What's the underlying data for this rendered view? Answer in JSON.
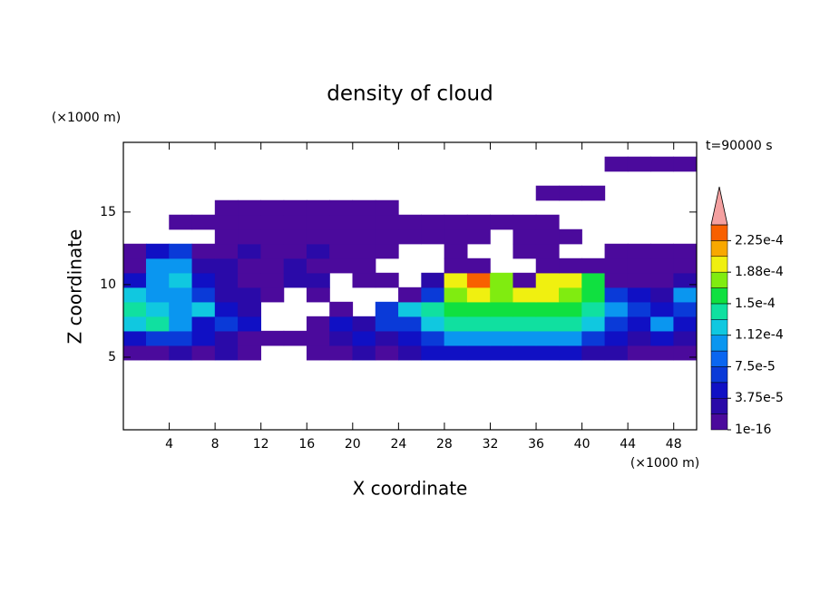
{
  "chart_data": {
    "type": "contour",
    "title": "density of cloud",
    "xlabel": "X coordinate",
    "ylabel": "Z coordinate",
    "x_unit": "(×1000 m)",
    "y_unit": "(×1000 m)",
    "annotation": "t=90000 s",
    "xlim": [
      0,
      50
    ],
    "ylim": [
      0,
      19.8
    ],
    "xticks": [
      4,
      8,
      12,
      16,
      20,
      24,
      28,
      32,
      36,
      40,
      44,
      48
    ],
    "yticks": [
      5,
      10,
      15
    ],
    "x_edges": [
      0,
      2,
      4,
      6,
      8,
      10,
      12,
      14,
      16,
      18,
      20,
      22,
      24,
      26,
      28,
      30,
      32,
      34,
      36,
      38,
      40,
      42,
      44,
      46,
      48,
      50
    ],
    "y_edges": [
      4.8,
      5.8,
      6.8,
      7.8,
      8.8,
      9.8,
      10.8,
      11.8,
      12.8,
      13.8,
      14.8,
      15.8,
      16.8,
      17.8,
      18.8
    ],
    "values": [
      [
        1e-05,
        1e-05,
        3e-05,
        1e-05,
        3e-05,
        1e-05,
        null,
        null,
        1e-05,
        1e-05,
        3e-05,
        1e-05,
        3e-05,
        5e-05,
        5e-05,
        5e-05,
        5e-05,
        5e-05,
        5e-05,
        5e-05,
        3e-05,
        3e-05,
        1e-05,
        1e-05,
        1e-05
      ],
      [
        5e-05,
        7e-05,
        7e-05,
        5e-05,
        3e-05,
        1e-05,
        1e-05,
        1e-05,
        1e-05,
        3e-05,
        5e-05,
        3e-05,
        5e-05,
        7e-05,
        0.0001,
        0.0001,
        0.0001,
        0.0001,
        0.0001,
        0.0001,
        7e-05,
        5e-05,
        3e-05,
        5e-05,
        3e-05
      ],
      [
        0.00012,
        0.00014,
        0.0001,
        5e-05,
        7e-05,
        5e-05,
        null,
        null,
        1e-05,
        5e-05,
        3e-05,
        7e-05,
        7e-05,
        0.00012,
        0.00014,
        0.00014,
        0.00014,
        0.00014,
        0.00014,
        0.00014,
        0.00012,
        7e-05,
        5e-05,
        0.0001,
        5e-05
      ],
      [
        0.00014,
        0.00012,
        0.0001,
        0.00012,
        5e-05,
        3e-05,
        null,
        null,
        null,
        1e-05,
        null,
        7e-05,
        0.00012,
        0.00014,
        0.00016,
        0.00016,
        0.00016,
        0.00016,
        0.00016,
        0.00016,
        0.00014,
        0.0001,
        7e-05,
        5e-05,
        7e-05
      ],
      [
        0.00012,
        0.0001,
        0.0001,
        7e-05,
        3e-05,
        3e-05,
        1e-05,
        null,
        1e-05,
        null,
        null,
        null,
        1e-05,
        7e-05,
        0.00018,
        0.0002,
        0.00018,
        0.0002,
        0.0002,
        0.00018,
        0.00016,
        7e-05,
        5e-05,
        3e-05,
        0.0001
      ],
      [
        5e-05,
        0.0001,
        0.00012,
        5e-05,
        3e-05,
        1e-05,
        1e-05,
        3e-05,
        3e-05,
        null,
        1e-05,
        1e-05,
        null,
        3e-05,
        0.0002,
        0.00023,
        0.00018,
        1e-05,
        0.0002,
        0.0002,
        0.00016,
        1e-05,
        1e-05,
        1e-05,
        3e-05
      ],
      [
        1e-05,
        0.0001,
        0.0001,
        3e-05,
        3e-05,
        1e-05,
        1e-05,
        3e-05,
        1e-05,
        1e-05,
        1e-05,
        null,
        null,
        null,
        1e-05,
        1e-05,
        null,
        null,
        1e-05,
        1e-05,
        1e-05,
        1e-05,
        1e-05,
        1e-05,
        1e-05
      ],
      [
        1e-05,
        5e-05,
        7e-05,
        1e-05,
        1e-05,
        3e-05,
        1e-05,
        1e-05,
        3e-05,
        1e-05,
        1e-05,
        1e-05,
        null,
        null,
        1e-05,
        null,
        null,
        1e-05,
        1e-05,
        null,
        null,
        1e-05,
        1e-05,
        1e-05,
        1e-05
      ],
      [
        null,
        null,
        null,
        null,
        1e-05,
        1e-05,
        1e-05,
        1e-05,
        1e-05,
        1e-05,
        1e-05,
        1e-05,
        1e-05,
        1e-05,
        1e-05,
        1e-05,
        null,
        1e-05,
        1e-05,
        1e-05,
        null,
        null,
        null,
        null,
        null
      ],
      [
        null,
        null,
        1e-05,
        1e-05,
        1e-05,
        1e-05,
        1e-05,
        1e-05,
        1e-05,
        1e-05,
        1e-05,
        1e-05,
        1e-05,
        1e-05,
        1e-05,
        1e-05,
        1e-05,
        1e-05,
        1e-05,
        null,
        null,
        null,
        null,
        null,
        null
      ],
      [
        null,
        null,
        null,
        null,
        1e-05,
        1e-05,
        1e-05,
        1e-05,
        1e-05,
        1e-05,
        1e-05,
        1e-05,
        null,
        null,
        null,
        null,
        null,
        null,
        null,
        null,
        null,
        null,
        null,
        null,
        null
      ],
      [
        null,
        null,
        null,
        null,
        null,
        null,
        null,
        null,
        null,
        null,
        null,
        null,
        null,
        null,
        null,
        null,
        null,
        null,
        1e-05,
        1e-05,
        1e-05,
        null,
        null,
        null,
        null
      ],
      [
        null,
        null,
        null,
        null,
        null,
        null,
        null,
        null,
        null,
        null,
        null,
        null,
        null,
        null,
        null,
        null,
        null,
        null,
        null,
        null,
        null,
        null,
        null,
        null,
        null
      ],
      [
        null,
        null,
        null,
        null,
        null,
        null,
        null,
        null,
        null,
        null,
        null,
        null,
        null,
        null,
        null,
        null,
        null,
        null,
        null,
        null,
        null,
        1e-05,
        1e-05,
        1e-05,
        1e-05
      ]
    ],
    "levels": [
      1e-16,
      1.875e-05,
      3.75e-05,
      5.625e-05,
      7.5e-05,
      9.375e-05,
      0.0001125,
      0.00013125,
      0.00015,
      0.00016875,
      0.0001875,
      0.00020625,
      0.000225,
      0.00024375
    ],
    "colors": [
      "#4b0a9c",
      "#2a0aa8",
      "#1010c4",
      "#0a3ad8",
      "#0a66f0",
      "#0a96f0",
      "#10c8e0",
      "#10e0a0",
      "#10e040",
      "#80ec10",
      "#f0f010",
      "#f8a800",
      "#f86000"
    ],
    "extend_color": "#f4a0a0",
    "colorbar_ticks": [
      1e-16,
      {
        "value": 3.75e-05,
        "label": "3.75e-5"
      },
      {
        "value": 7.5e-05,
        "label": "7.5e-5"
      },
      {
        "value": 0.0001125,
        "label": "1.12e-4"
      },
      {
        "value": 0.00015,
        "label": "1.5e-4"
      },
      {
        "value": 0.0001875,
        "label": "1.88e-4"
      },
      {
        "value": 0.000225,
        "label": "2.25e-4"
      }
    ]
  }
}
